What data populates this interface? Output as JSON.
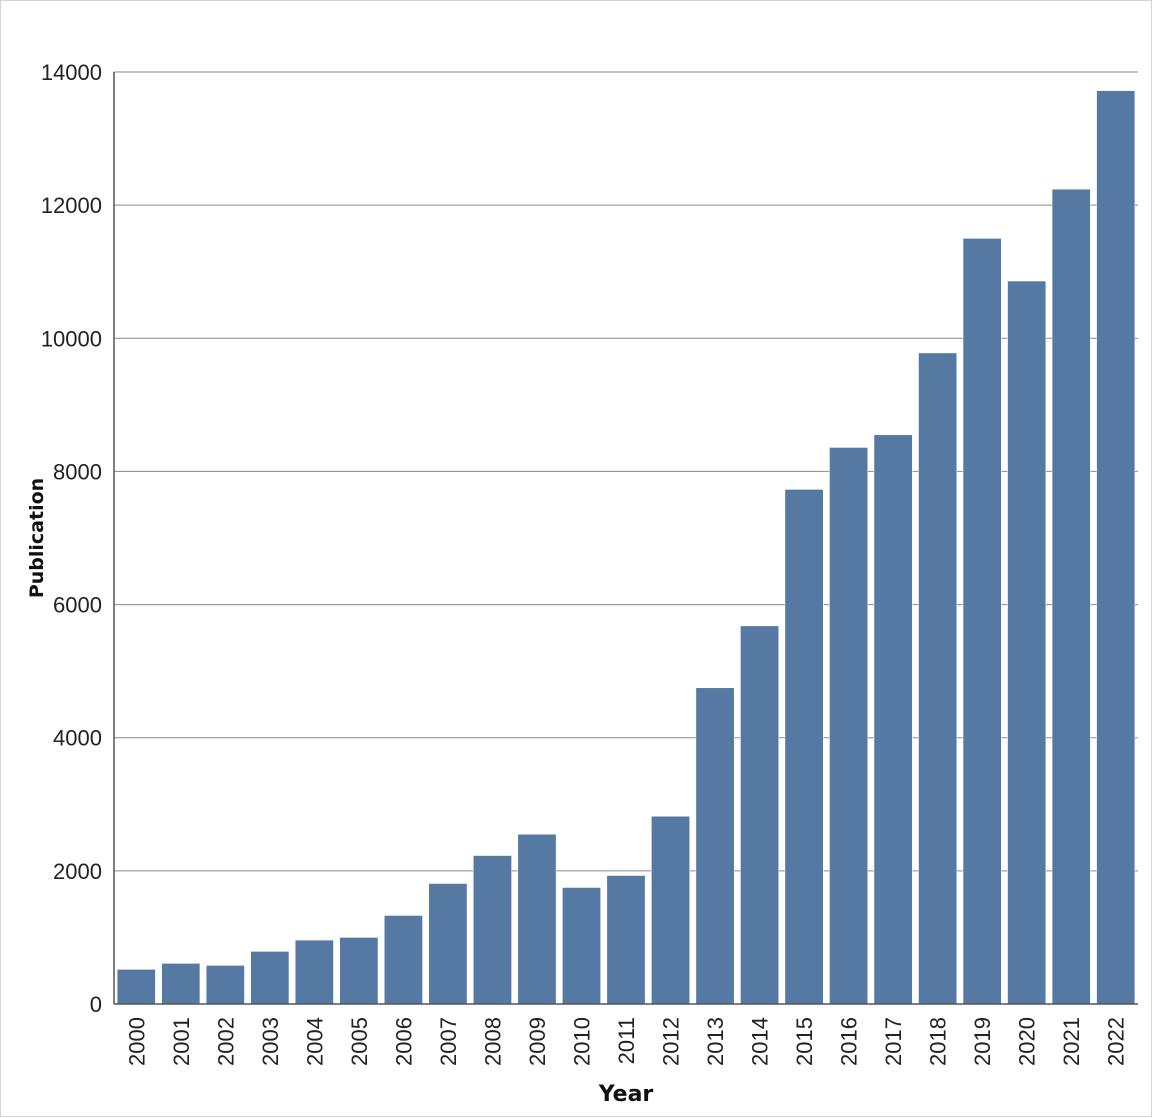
{
  "chart_data": {
    "type": "bar",
    "title": "",
    "xlabel": "Year",
    "ylabel": "Publication",
    "ylim": [
      0,
      14000
    ],
    "yticks": [
      0,
      2000,
      4000,
      6000,
      8000,
      10000,
      12000,
      14000
    ],
    "grid": "horizontal",
    "bar_color": "#5679a3",
    "categories": [
      "2000",
      "2001",
      "2002",
      "2003",
      "2004",
      "2005",
      "2006",
      "2007",
      "2008",
      "2009",
      "2010",
      "2011",
      "2012",
      "2013",
      "2014",
      "2015",
      "2016",
      "2017",
      "2018",
      "2019",
      "2020",
      "2021",
      "2022"
    ],
    "values": [
      520,
      610,
      580,
      790,
      960,
      1000,
      1330,
      1810,
      2230,
      2550,
      1750,
      1930,
      2820,
      4750,
      5680,
      7730,
      8360,
      8550,
      9780,
      11500,
      10860,
      12240,
      13720
    ]
  }
}
